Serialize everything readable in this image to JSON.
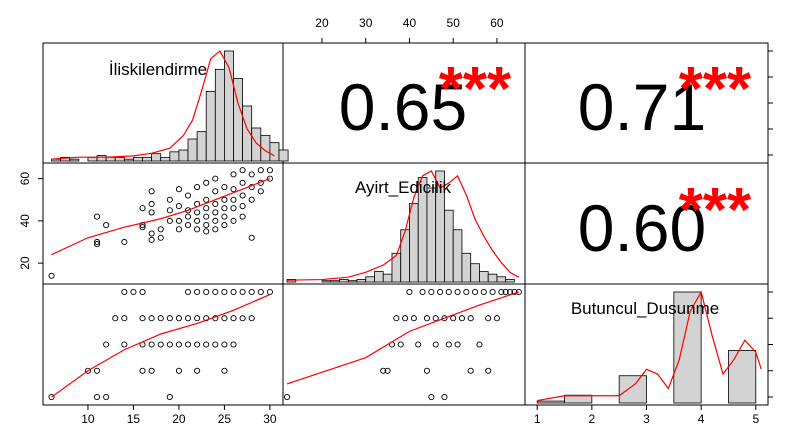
{
  "chart_data": {
    "type": "scatter",
    "variables": [
      "İliskilendirme",
      "Ayirt_Edicilik",
      "Butuncul_Dusunme"
    ],
    "axes": {
      "iliskilendirme": {
        "range": [
          5.5,
          31
        ],
        "ticks": [
          "10",
          "15",
          "20",
          "25",
          "30"
        ],
        "tick_values": [
          10,
          15,
          20,
          25,
          30
        ]
      },
      "ayirt": {
        "range": [
          12,
          65.5
        ],
        "ticks": [
          "20",
          "30",
          "40",
          "50",
          "60"
        ],
        "tick_values": [
          20,
          30,
          40,
          50,
          60
        ],
        "left_ticks": [
          "20",
          "40",
          "60"
        ],
        "left_tick_values": [
          20,
          40,
          60
        ]
      },
      "butuncul": {
        "range": [
          0.85,
          5.15
        ],
        "ticks": [
          "1",
          "2",
          "3",
          "4",
          "5"
        ],
        "tick_values": [
          1,
          2,
          3,
          4,
          5
        ]
      }
    },
    "correlations": [
      {
        "pair": [
          "İliskilendirme",
          "Ayirt_Edicilik"
        ],
        "value": "0.65",
        "stars": "***"
      },
      {
        "pair": [
          "İliskilendirme",
          "Butuncul_Dusunme"
        ],
        "value": "0.71",
        "stars": "***"
      },
      {
        "pair": [
          "Ayirt_Edicilik",
          "Butuncul_Dusunme"
        ],
        "value": "0.60",
        "stars": "***"
      }
    ],
    "histograms": {
      "iliskilendirme": {
        "bin_start": 6,
        "bin_width": 1,
        "counts": [
          1,
          2,
          1,
          0,
          2,
          3,
          2,
          2,
          1,
          2,
          2,
          4,
          2,
          5,
          6,
          12,
          16,
          38,
          50,
          60,
          45,
          30,
          18,
          14,
          10,
          6
        ],
        "density_x": [
          6,
          9,
          12,
          15,
          17,
          19,
          20.5,
          21.5,
          22.5,
          23.5,
          24.5,
          25.5,
          26.5,
          27.5,
          28.5,
          29.5,
          30.5
        ],
        "density_y": [
          1.5,
          3,
          3,
          4,
          6,
          10,
          20,
          32,
          55,
          80,
          86,
          73,
          45,
          25,
          14,
          8,
          4
        ]
      },
      "ayirt": {
        "bin_start": 12,
        "bin_width": 2,
        "counts": [
          2,
          0,
          0,
          0,
          1,
          1,
          2,
          1,
          2,
          4,
          8,
          6,
          22,
          40,
          60,
          80,
          72,
          85,
          55,
          40,
          22,
          14,
          8,
          6,
          4,
          2
        ],
        "density_x": [
          12,
          20,
          26,
          30,
          34,
          37,
          39,
          41,
          43,
          45,
          47,
          49,
          51,
          53,
          55,
          57,
          59,
          61,
          63,
          65
        ],
        "density_y": [
          1.5,
          2,
          4,
          8,
          14,
          22,
          42,
          70,
          88,
          92,
          78,
          82,
          88,
          72,
          52,
          38,
          26,
          16,
          8,
          4
        ]
      },
      "butuncul": {
        "bins": [
          [
            1,
            1.5
          ],
          [
            1.5,
            2
          ],
          [
            2.5,
            3
          ],
          [
            3.5,
            4
          ],
          [
            4.5,
            5
          ]
        ],
        "counts": [
          1,
          4,
          14,
          57,
          27
        ],
        "density_x": [
          1,
          1.5,
          2,
          2.5,
          2.8,
          3.0,
          3.2,
          3.4,
          3.6,
          3.8,
          4.0,
          4.2,
          4.4,
          4.6,
          4.8,
          5.0,
          5.1
        ],
        "density_y": [
          1,
          3,
          3,
          3,
          8,
          14,
          12,
          6,
          18,
          38,
          46,
          28,
          12,
          18,
          26,
          21,
          14
        ]
      }
    },
    "scatter_I_A": {
      "points": [
        [
          6,
          14
        ],
        [
          11,
          42
        ],
        [
          11,
          30
        ],
        [
          11,
          29
        ],
        [
          12,
          38
        ],
        [
          14,
          30
        ],
        [
          16,
          46
        ],
        [
          16,
          38
        ],
        [
          16,
          37
        ],
        [
          17,
          54
        ],
        [
          17,
          48
        ],
        [
          17,
          44
        ],
        [
          17,
          34
        ],
        [
          17,
          31
        ],
        [
          18,
          36
        ],
        [
          18,
          32
        ],
        [
          19,
          50
        ],
        [
          19,
          45
        ],
        [
          19,
          40
        ],
        [
          20,
          55
        ],
        [
          20,
          47
        ],
        [
          20,
          40
        ],
        [
          20,
          36
        ],
        [
          21,
          52
        ],
        [
          21,
          45
        ],
        [
          21,
          42
        ],
        [
          21,
          38
        ],
        [
          22,
          56
        ],
        [
          22,
          48
        ],
        [
          22,
          44
        ],
        [
          22,
          40
        ],
        [
          22,
          36
        ],
        [
          23,
          58
        ],
        [
          23,
          50
        ],
        [
          23,
          46
        ],
        [
          23,
          42
        ],
        [
          23,
          38
        ],
        [
          23,
          35
        ],
        [
          24,
          60
        ],
        [
          24,
          54
        ],
        [
          24,
          48
        ],
        [
          24,
          44
        ],
        [
          24,
          40
        ],
        [
          24,
          36
        ],
        [
          25,
          56
        ],
        [
          25,
          50
        ],
        [
          25,
          46
        ],
        [
          25,
          42
        ],
        [
          25,
          38
        ],
        [
          26,
          62
        ],
        [
          26,
          55
        ],
        [
          26,
          50
        ],
        [
          26,
          46
        ],
        [
          26,
          40
        ],
        [
          27,
          64
        ],
        [
          27,
          58
        ],
        [
          27,
          52
        ],
        [
          27,
          47
        ],
        [
          27,
          42
        ],
        [
          28,
          62
        ],
        [
          28,
          56
        ],
        [
          28,
          50
        ],
        [
          28,
          32
        ],
        [
          29,
          64
        ],
        [
          29,
          58
        ],
        [
          29,
          54
        ],
        [
          30,
          64
        ],
        [
          30,
          60
        ]
      ],
      "loess": [
        [
          6,
          24
        ],
        [
          10,
          32
        ],
        [
          14,
          37
        ],
        [
          18,
          41
        ],
        [
          21,
          45
        ],
        [
          24,
          50
        ],
        [
          27,
          55
        ],
        [
          30,
          60
        ]
      ]
    },
    "scatter_I_B": {
      "points": [
        [
          6,
          1
        ],
        [
          10,
          2
        ],
        [
          11,
          1
        ],
        [
          11,
          2
        ],
        [
          12,
          1
        ],
        [
          12,
          3
        ],
        [
          13,
          4
        ],
        [
          14,
          5
        ],
        [
          14,
          4
        ],
        [
          14,
          3
        ],
        [
          15,
          5
        ],
        [
          16,
          5
        ],
        [
          16,
          4
        ],
        [
          16,
          3
        ],
        [
          16,
          2
        ],
        [
          17,
          4
        ],
        [
          17,
          3
        ],
        [
          17,
          2
        ],
        [
          18,
          4
        ],
        [
          18,
          3
        ],
        [
          19,
          4
        ],
        [
          19,
          3
        ],
        [
          19,
          1
        ],
        [
          20,
          4
        ],
        [
          20,
          3
        ],
        [
          20,
          2
        ],
        [
          21,
          5
        ],
        [
          21,
          4
        ],
        [
          21,
          3
        ],
        [
          22,
          5
        ],
        [
          22,
          4
        ],
        [
          22,
          3
        ],
        [
          22,
          2
        ],
        [
          23,
          5
        ],
        [
          23,
          4
        ],
        [
          23,
          3
        ],
        [
          24,
          5
        ],
        [
          24,
          4
        ],
        [
          24,
          3
        ],
        [
          25,
          5
        ],
        [
          25,
          4
        ],
        [
          25,
          3
        ],
        [
          25,
          2
        ],
        [
          26,
          5
        ],
        [
          26,
          4
        ],
        [
          26,
          3
        ],
        [
          27,
          5
        ],
        [
          27,
          4
        ],
        [
          28,
          5
        ],
        [
          28,
          4
        ],
        [
          29,
          5
        ],
        [
          30,
          5
        ]
      ],
      "loess": [
        [
          6,
          1
        ],
        [
          10,
          2
        ],
        [
          14,
          2.8
        ],
        [
          18,
          3.4
        ],
        [
          22,
          3.8
        ],
        [
          26,
          4.3
        ],
        [
          30,
          4.9
        ]
      ]
    },
    "scatter_A_B": {
      "points": [
        [
          12,
          1
        ],
        [
          34,
          2
        ],
        [
          35,
          2
        ],
        [
          36,
          3
        ],
        [
          37,
          4
        ],
        [
          38,
          3
        ],
        [
          39,
          4
        ],
        [
          40,
          5
        ],
        [
          41,
          4
        ],
        [
          42,
          3
        ],
        [
          43,
          5
        ],
        [
          44,
          4
        ],
        [
          44,
          2
        ],
        [
          45,
          5
        ],
        [
          45,
          1
        ],
        [
          46,
          4
        ],
        [
          46,
          3
        ],
        [
          47,
          5
        ],
        [
          48,
          4
        ],
        [
          48,
          1
        ],
        [
          49,
          5
        ],
        [
          49,
          3
        ],
        [
          50,
          4
        ],
        [
          51,
          5
        ],
        [
          51,
          3
        ],
        [
          52,
          4
        ],
        [
          53,
          5
        ],
        [
          54,
          4
        ],
        [
          54,
          2
        ],
        [
          55,
          5
        ],
        [
          56,
          3
        ],
        [
          57,
          5
        ],
        [
          58,
          4
        ],
        [
          58,
          2
        ],
        [
          59,
          5
        ],
        [
          60,
          4
        ],
        [
          61,
          5
        ],
        [
          62,
          5
        ],
        [
          63,
          5
        ],
        [
          64,
          5
        ],
        [
          65,
          5
        ]
      ],
      "loess": [
        [
          12,
          1.5
        ],
        [
          30,
          2.5
        ],
        [
          40,
          3.5
        ],
        [
          48,
          4.0
        ],
        [
          56,
          4.5
        ],
        [
          65,
          5.0
        ]
      ]
    }
  },
  "colors": {
    "bar_fill": "#d3d3d3",
    "curve": "#ff0000",
    "stars": "#ff0000",
    "frame": "#000000"
  }
}
